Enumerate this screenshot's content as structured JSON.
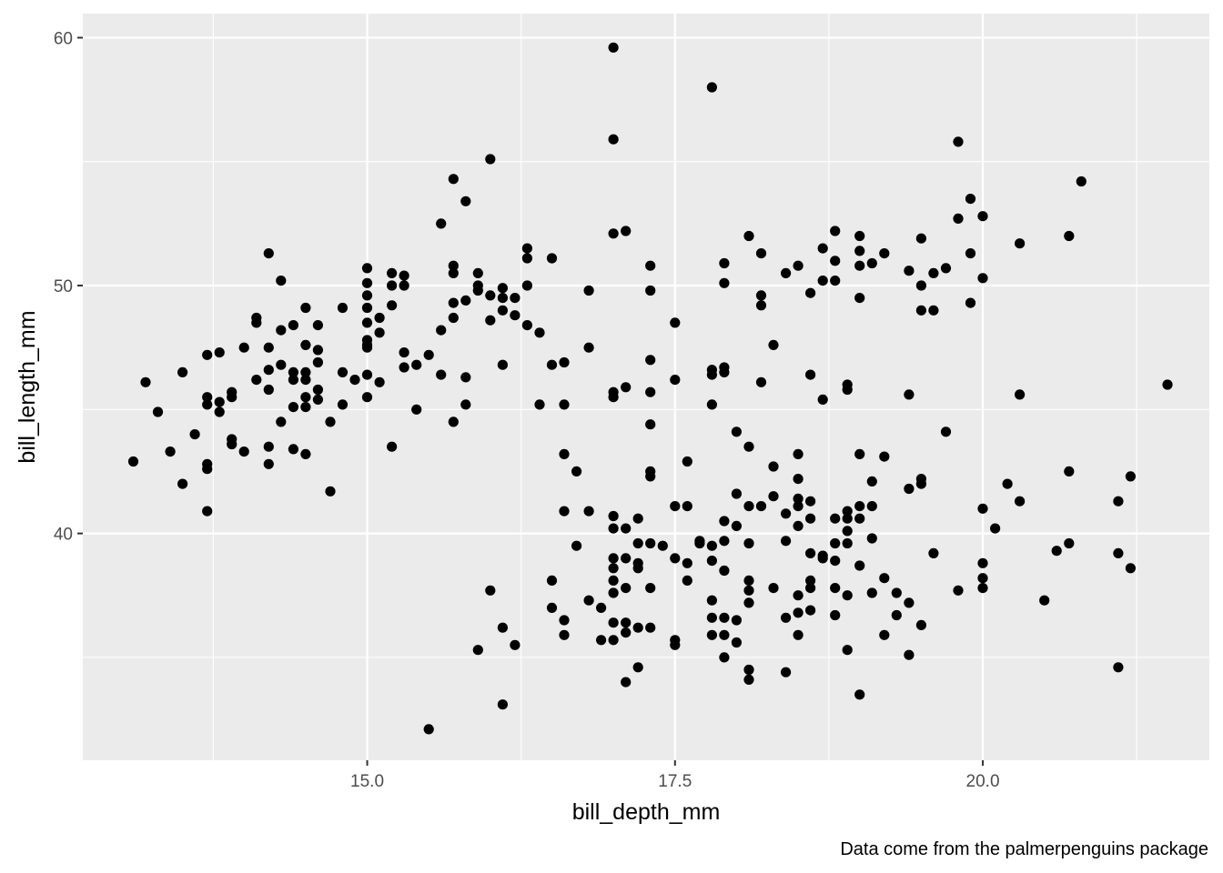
{
  "chart_data": {
    "type": "scatter",
    "xlabel": "bill_depth_mm",
    "ylabel": "bill_length_mm",
    "caption": "Data come from the palmerpenguins package",
    "x_ticks": [
      15.0,
      17.5,
      20.0
    ],
    "x_tick_labels": [
      "15.0",
      "17.5",
      "20.0"
    ],
    "y_ticks": [
      40,
      50,
      60
    ],
    "y_tick_labels": [
      "40",
      "50",
      "60"
    ],
    "xlim": [
      12.69,
      21.84
    ],
    "ylim": [
      30.85,
      60.97
    ],
    "grid": true,
    "colors": {
      "panel": "#ebebeb",
      "grid": "#ffffff",
      "point": "#000000",
      "tick": "#333333"
    },
    "points": [
      [
        13.1,
        42.9
      ],
      [
        13.2,
        46.1
      ],
      [
        13.3,
        44.9
      ],
      [
        13.4,
        43.3
      ],
      [
        13.5,
        46.5
      ],
      [
        13.5,
        42.0
      ],
      [
        13.6,
        44.0
      ],
      [
        13.7,
        47.2
      ],
      [
        13.7,
        45.5
      ],
      [
        13.7,
        45.2
      ],
      [
        13.7,
        42.8
      ],
      [
        13.7,
        42.6
      ],
      [
        13.7,
        40.9
      ],
      [
        13.8,
        47.3
      ],
      [
        13.8,
        45.3
      ],
      [
        13.8,
        44.9
      ],
      [
        13.9,
        45.7
      ],
      [
        13.9,
        45.5
      ],
      [
        13.9,
        43.8
      ],
      [
        13.9,
        43.6
      ],
      [
        14.0,
        47.5
      ],
      [
        14.0,
        43.3
      ],
      [
        14.1,
        48.7
      ],
      [
        14.1,
        48.5
      ],
      [
        14.1,
        46.2
      ],
      [
        14.2,
        51.3
      ],
      [
        14.2,
        47.5
      ],
      [
        14.2,
        46.6
      ],
      [
        14.2,
        45.8
      ],
      [
        14.2,
        43.5
      ],
      [
        14.2,
        42.8
      ],
      [
        14.3,
        50.2
      ],
      [
        14.3,
        48.2
      ],
      [
        14.3,
        46.8
      ],
      [
        14.3,
        44.5
      ],
      [
        14.4,
        48.4
      ],
      [
        14.4,
        46.5
      ],
      [
        14.4,
        46.2
      ],
      [
        14.4,
        45.1
      ],
      [
        14.4,
        43.4
      ],
      [
        14.5,
        49.1
      ],
      [
        14.5,
        47.6
      ],
      [
        14.5,
        46.5
      ],
      [
        14.5,
        46.2
      ],
      [
        14.5,
        45.5
      ],
      [
        14.5,
        45.1
      ],
      [
        14.5,
        43.2
      ],
      [
        14.6,
        48.4
      ],
      [
        14.6,
        47.4
      ],
      [
        14.6,
        46.9
      ],
      [
        14.6,
        45.8
      ],
      [
        14.6,
        45.4
      ],
      [
        14.7,
        44.5
      ],
      [
        14.7,
        41.7
      ],
      [
        14.8,
        49.1
      ],
      [
        14.8,
        46.5
      ],
      [
        14.8,
        45.2
      ],
      [
        14.9,
        46.2
      ],
      [
        15.0,
        50.7
      ],
      [
        15.0,
        50.1
      ],
      [
        15.0,
        49.6
      ],
      [
        15.0,
        49.1
      ],
      [
        15.0,
        48.5
      ],
      [
        15.0,
        47.8
      ],
      [
        15.0,
        47.5
      ],
      [
        15.0,
        46.4
      ],
      [
        15.0,
        45.5
      ],
      [
        15.0,
        47.6
      ],
      [
        15.1,
        48.7
      ],
      [
        15.1,
        48.1
      ],
      [
        15.1,
        46.1
      ],
      [
        15.2,
        50.5
      ],
      [
        15.2,
        50.0
      ],
      [
        15.2,
        49.2
      ],
      [
        15.2,
        43.5
      ],
      [
        15.3,
        50.4
      ],
      [
        15.3,
        50.0
      ],
      [
        15.3,
        47.3
      ],
      [
        15.3,
        46.7
      ],
      [
        15.4,
        46.8
      ],
      [
        15.4,
        45.0
      ],
      [
        15.5,
        47.2
      ],
      [
        15.5,
        32.1
      ],
      [
        15.6,
        52.5
      ],
      [
        15.6,
        48.2
      ],
      [
        15.6,
        46.4
      ],
      [
        15.7,
        54.3
      ],
      [
        15.7,
        50.8
      ],
      [
        15.7,
        50.5
      ],
      [
        15.7,
        49.3
      ],
      [
        15.7,
        48.7
      ],
      [
        15.7,
        44.5
      ],
      [
        15.8,
        53.4
      ],
      [
        15.8,
        49.4
      ],
      [
        15.8,
        46.3
      ],
      [
        15.8,
        45.2
      ],
      [
        15.9,
        50.5
      ],
      [
        15.9,
        50.0
      ],
      [
        15.9,
        49.8
      ],
      [
        15.9,
        35.3
      ],
      [
        16.0,
        55.1
      ],
      [
        16.0,
        49.6
      ],
      [
        16.0,
        48.6
      ],
      [
        16.0,
        37.7
      ],
      [
        16.1,
        49.9
      ],
      [
        16.1,
        49.5
      ],
      [
        16.1,
        49.0
      ],
      [
        16.1,
        46.8
      ],
      [
        16.1,
        36.2
      ],
      [
        16.1,
        33.1
      ],
      [
        16.2,
        49.5
      ],
      [
        16.2,
        48.8
      ],
      [
        16.2,
        35.5
      ],
      [
        16.3,
        51.5
      ],
      [
        16.3,
        51.1
      ],
      [
        16.3,
        50.0
      ],
      [
        16.3,
        48.4
      ],
      [
        16.4,
        48.1
      ],
      [
        16.4,
        45.2
      ],
      [
        16.5,
        51.1
      ],
      [
        16.5,
        46.8
      ],
      [
        16.5,
        38.1
      ],
      [
        16.5,
        37.0
      ],
      [
        16.6,
        46.9
      ],
      [
        16.6,
        45.2
      ],
      [
        16.6,
        43.2
      ],
      [
        16.6,
        40.9
      ],
      [
        16.6,
        36.5
      ],
      [
        16.6,
        35.9
      ],
      [
        16.7,
        42.5
      ],
      [
        16.7,
        39.5
      ],
      [
        16.8,
        49.8
      ],
      [
        16.8,
        47.5
      ],
      [
        16.8,
        40.9
      ],
      [
        16.8,
        37.3
      ],
      [
        16.9,
        37.0
      ],
      [
        16.9,
        35.7
      ],
      [
        17.0,
        59.6
      ],
      [
        17.0,
        55.9
      ],
      [
        17.0,
        52.1
      ],
      [
        17.0,
        45.7
      ],
      [
        17.0,
        45.5
      ],
      [
        17.0,
        40.7
      ],
      [
        17.0,
        40.2
      ],
      [
        17.0,
        39.0
      ],
      [
        17.0,
        38.6
      ],
      [
        17.0,
        38.1
      ],
      [
        17.0,
        37.6
      ],
      [
        17.0,
        36.4
      ],
      [
        17.0,
        35.7
      ],
      [
        17.1,
        52.2
      ],
      [
        17.1,
        45.9
      ],
      [
        17.1,
        40.2
      ],
      [
        17.1,
        39.0
      ],
      [
        17.1,
        37.8
      ],
      [
        17.1,
        36.4
      ],
      [
        17.1,
        36.0
      ],
      [
        17.1,
        34.0
      ],
      [
        17.2,
        40.6
      ],
      [
        17.2,
        39.6
      ],
      [
        17.2,
        38.8
      ],
      [
        17.2,
        38.6
      ],
      [
        17.2,
        36.2
      ],
      [
        17.2,
        34.6
      ],
      [
        17.3,
        50.8
      ],
      [
        17.3,
        49.8
      ],
      [
        17.3,
        47.0
      ],
      [
        17.3,
        45.7
      ],
      [
        17.3,
        44.4
      ],
      [
        17.3,
        42.5
      ],
      [
        17.3,
        42.3
      ],
      [
        17.3,
        39.6
      ],
      [
        17.3,
        37.8
      ],
      [
        17.3,
        36.2
      ],
      [
        17.4,
        39.5
      ],
      [
        17.5,
        48.5
      ],
      [
        17.5,
        46.2
      ],
      [
        17.5,
        41.1
      ],
      [
        17.5,
        39.0
      ],
      [
        17.5,
        35.7
      ],
      [
        17.5,
        35.5
      ],
      [
        17.6,
        42.9
      ],
      [
        17.6,
        41.1
      ],
      [
        17.6,
        38.8
      ],
      [
        17.6,
        38.1
      ],
      [
        17.7,
        39.7
      ],
      [
        17.7,
        39.6
      ],
      [
        17.8,
        58.0
      ],
      [
        17.8,
        46.6
      ],
      [
        17.8,
        46.4
      ],
      [
        17.8,
        45.2
      ],
      [
        17.8,
        39.5
      ],
      [
        17.8,
        38.9
      ],
      [
        17.8,
        37.3
      ],
      [
        17.8,
        36.6
      ],
      [
        17.8,
        35.9
      ],
      [
        17.9,
        50.9
      ],
      [
        17.9,
        50.1
      ],
      [
        17.9,
        46.7
      ],
      [
        17.9,
        46.5
      ],
      [
        17.9,
        40.5
      ],
      [
        17.9,
        39.7
      ],
      [
        17.9,
        38.5
      ],
      [
        17.9,
        36.6
      ],
      [
        17.9,
        35.9
      ],
      [
        17.9,
        35.0
      ],
      [
        18.0,
        44.1
      ],
      [
        18.0,
        41.6
      ],
      [
        18.0,
        40.3
      ],
      [
        18.0,
        36.5
      ],
      [
        18.0,
        35.6
      ],
      [
        18.1,
        52.0
      ],
      [
        18.1,
        43.5
      ],
      [
        18.1,
        41.1
      ],
      [
        18.1,
        39.6
      ],
      [
        18.1,
        38.1
      ],
      [
        18.1,
        37.7
      ],
      [
        18.1,
        37.2
      ],
      [
        18.1,
        34.5
      ],
      [
        18.1,
        34.1
      ],
      [
        18.2,
        51.3
      ],
      [
        18.2,
        49.6
      ],
      [
        18.2,
        49.2
      ],
      [
        18.2,
        46.1
      ],
      [
        18.2,
        41.1
      ],
      [
        18.3,
        47.6
      ],
      [
        18.3,
        42.7
      ],
      [
        18.3,
        41.5
      ],
      [
        18.3,
        37.8
      ],
      [
        18.4,
        50.5
      ],
      [
        18.4,
        40.8
      ],
      [
        18.4,
        39.7
      ],
      [
        18.4,
        36.6
      ],
      [
        18.4,
        34.4
      ],
      [
        18.5,
        50.8
      ],
      [
        18.5,
        43.2
      ],
      [
        18.5,
        42.2
      ],
      [
        18.5,
        41.4
      ],
      [
        18.5,
        41.1
      ],
      [
        18.5,
        40.3
      ],
      [
        18.5,
        37.5
      ],
      [
        18.5,
        36.8
      ],
      [
        18.5,
        35.9
      ],
      [
        18.6,
        49.7
      ],
      [
        18.6,
        46.4
      ],
      [
        18.6,
        41.3
      ],
      [
        18.6,
        40.6
      ],
      [
        18.6,
        39.2
      ],
      [
        18.6,
        38.1
      ],
      [
        18.6,
        37.8
      ],
      [
        18.6,
        36.9
      ],
      [
        18.7,
        51.5
      ],
      [
        18.7,
        50.2
      ],
      [
        18.7,
        45.4
      ],
      [
        18.7,
        39.1
      ],
      [
        18.7,
        39.0
      ],
      [
        18.8,
        52.2
      ],
      [
        18.8,
        51.0
      ],
      [
        18.8,
        50.2
      ],
      [
        18.8,
        40.6
      ],
      [
        18.8,
        39.6
      ],
      [
        18.8,
        38.9
      ],
      [
        18.8,
        37.8
      ],
      [
        18.8,
        36.7
      ],
      [
        18.9,
        46.0
      ],
      [
        18.9,
        45.8
      ],
      [
        18.9,
        40.9
      ],
      [
        18.9,
        40.6
      ],
      [
        18.9,
        40.1
      ],
      [
        18.9,
        39.6
      ],
      [
        18.9,
        37.5
      ],
      [
        18.9,
        35.3
      ],
      [
        19.0,
        52.0
      ],
      [
        19.0,
        51.4
      ],
      [
        19.0,
        50.8
      ],
      [
        19.0,
        49.5
      ],
      [
        19.0,
        43.2
      ],
      [
        19.0,
        41.1
      ],
      [
        19.0,
        40.6
      ],
      [
        19.0,
        38.7
      ],
      [
        19.0,
        33.5
      ],
      [
        19.1,
        50.9
      ],
      [
        19.1,
        42.1
      ],
      [
        19.1,
        41.1
      ],
      [
        19.1,
        39.8
      ],
      [
        19.1,
        37.6
      ],
      [
        19.2,
        51.3
      ],
      [
        19.2,
        43.1
      ],
      [
        19.2,
        38.2
      ],
      [
        19.2,
        35.9
      ],
      [
        19.3,
        37.6
      ],
      [
        19.3,
        36.7
      ],
      [
        19.4,
        50.6
      ],
      [
        19.4,
        45.6
      ],
      [
        19.4,
        41.8
      ],
      [
        19.4,
        37.2
      ],
      [
        19.4,
        35.1
      ],
      [
        19.5,
        51.9
      ],
      [
        19.5,
        50.0
      ],
      [
        19.5,
        49.0
      ],
      [
        19.5,
        42.2
      ],
      [
        19.5,
        42.0
      ],
      [
        19.5,
        36.3
      ],
      [
        19.6,
        50.5
      ],
      [
        19.6,
        49.0
      ],
      [
        19.6,
        39.2
      ],
      [
        19.7,
        50.7
      ],
      [
        19.7,
        44.1
      ],
      [
        19.8,
        55.8
      ],
      [
        19.8,
        52.7
      ],
      [
        19.8,
        37.7
      ],
      [
        19.9,
        53.5
      ],
      [
        19.9,
        51.3
      ],
      [
        19.9,
        49.3
      ],
      [
        20.0,
        52.8
      ],
      [
        20.0,
        50.3
      ],
      [
        20.0,
        41.0
      ],
      [
        20.0,
        38.8
      ],
      [
        20.0,
        38.2
      ],
      [
        20.0,
        37.8
      ],
      [
        20.1,
        40.2
      ],
      [
        20.2,
        42.0
      ],
      [
        20.3,
        51.7
      ],
      [
        20.3,
        45.6
      ],
      [
        20.3,
        41.3
      ],
      [
        20.5,
        37.3
      ],
      [
        20.6,
        39.3
      ],
      [
        20.7,
        52.0
      ],
      [
        20.7,
        42.5
      ],
      [
        20.7,
        39.6
      ],
      [
        20.8,
        54.2
      ],
      [
        21.1,
        41.3
      ],
      [
        21.1,
        39.2
      ],
      [
        21.1,
        34.6
      ],
      [
        21.2,
        42.3
      ],
      [
        21.2,
        38.6
      ],
      [
        21.5,
        46.0
      ]
    ]
  }
}
